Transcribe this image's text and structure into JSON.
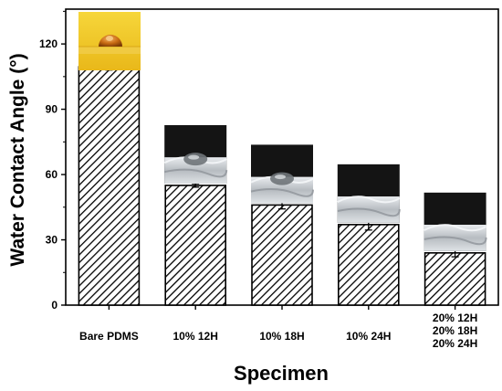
{
  "chart_data": {
    "type": "bar",
    "xlabel": "Specimen",
    "ylabel": "Water Contact Angle (°)",
    "ylim": [
      0,
      136
    ],
    "yticks": [
      0,
      30,
      60,
      90,
      120
    ],
    "categories": [
      [
        "Bare PDMS"
      ],
      [
        "10% 12H"
      ],
      [
        "10% 18H"
      ],
      [
        "10% 24H"
      ],
      [
        "20% 12H",
        "20% 18H",
        "20% 24H"
      ]
    ],
    "values": [
      109.5,
      55,
      46,
      37,
      24
    ],
    "errors": [
      1.5,
      0.8,
      1.8,
      2.5,
      1.8
    ],
    "bar_pattern": "diagonal-hatch",
    "insets": [
      {
        "bar": 0,
        "description": "droplet photo",
        "colors": [
          "#f5d020",
          "#b8600a"
        ]
      },
      {
        "bar": 1,
        "description": "droplet photo",
        "colors": [
          "#151515",
          "#cfd3d6"
        ]
      },
      {
        "bar": 2,
        "description": "droplet photo",
        "colors": [
          "#151515",
          "#cfd3d6"
        ]
      },
      {
        "bar": 3,
        "description": "droplet photo",
        "colors": [
          "#151515",
          "#cfd3d6"
        ]
      },
      {
        "bar": 4,
        "description": "droplet photo",
        "colors": [
          "#151515",
          "#cfd3d6"
        ]
      }
    ]
  },
  "colors": {
    "bar_fill": "#ffffff",
    "hatch": "#000000",
    "axis": "#000000"
  }
}
